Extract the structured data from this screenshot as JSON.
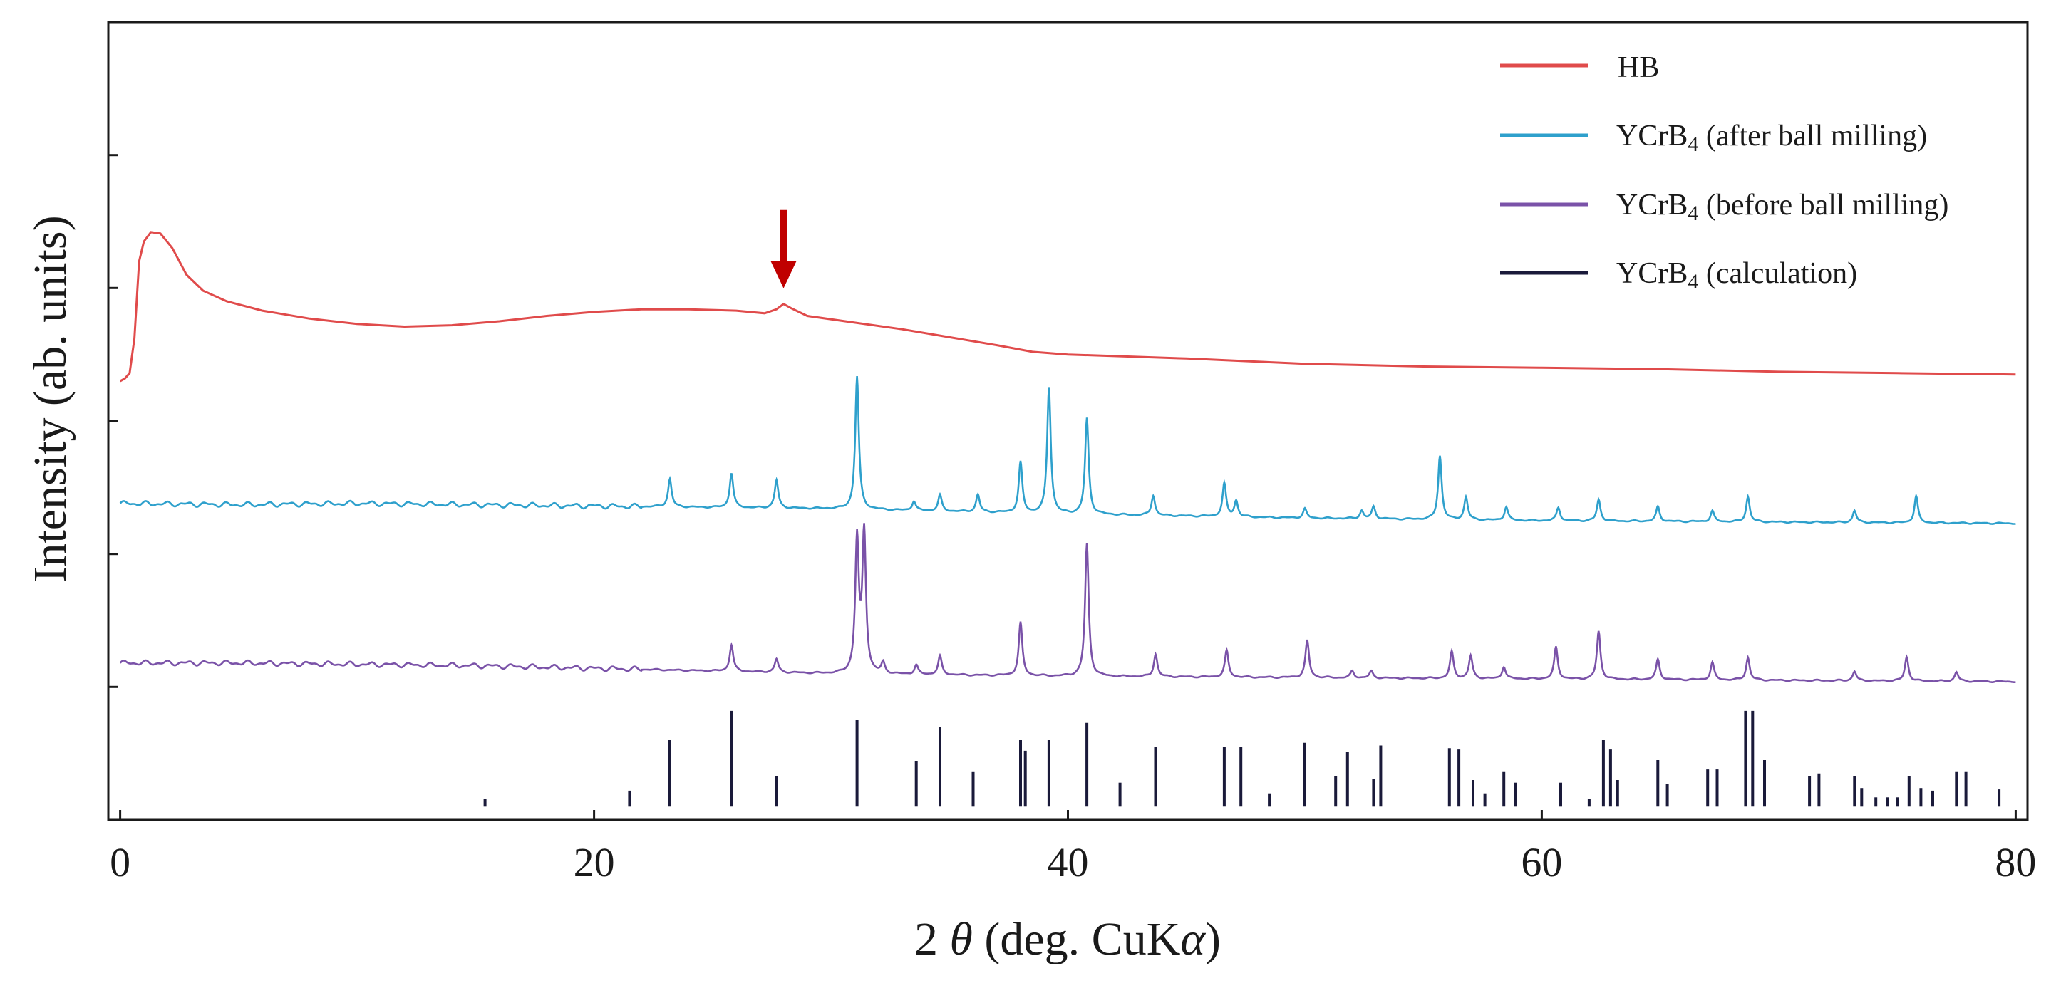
{
  "chart_data": {
    "type": "line",
    "title": "",
    "xlabel_parts": [
      "2 ",
      "θ",
      " (deg. CuK",
      "α",
      ")"
    ],
    "ylabel": "Intensity (ab. units)",
    "xlim": [
      -0.5,
      80.5
    ],
    "ylim": [
      0,
      6
    ],
    "x_ticks": [
      0,
      20,
      40,
      60,
      80
    ],
    "x_tick_labels": [
      "0",
      "20",
      "40",
      "60",
      "80"
    ],
    "y_ticks": [
      1,
      2,
      3,
      4,
      5,
      6
    ],
    "grid": false,
    "legend_position": "top-right",
    "colors": {
      "HB": "#e04b4b",
      "after": "#2ea0cc",
      "before": "#7a52a8",
      "calc": "#1a1a3a",
      "arrow": "#c00000"
    },
    "legend": [
      {
        "key": "HB",
        "label": "HB",
        "sub": "",
        "rest": ""
      },
      {
        "key": "after",
        "label": "YCrB",
        "sub": "4",
        "rest": " (after ball milling)"
      },
      {
        "key": "before",
        "label": "YCrB",
        "sub": "4",
        "rest": " (before ball milling)"
      },
      {
        "key": "calc",
        "label": "YCrB",
        "sub": "4",
        "rest": " (calculation)"
      }
    ],
    "annotation": {
      "type": "arrow",
      "x": 28.0,
      "note": "peak marker on HB pattern"
    },
    "series": [
      {
        "name": "HB",
        "key": "HB",
        "points": [
          [
            0,
            3.3
          ],
          [
            0.2,
            3.32
          ],
          [
            0.4,
            3.36
          ],
          [
            0.6,
            3.62
          ],
          [
            0.8,
            4.2
          ],
          [
            1.0,
            4.35
          ],
          [
            1.3,
            4.42
          ],
          [
            1.7,
            4.41
          ],
          [
            2.2,
            4.3
          ],
          [
            2.8,
            4.1
          ],
          [
            3.5,
            3.98
          ],
          [
            4.5,
            3.9
          ],
          [
            6,
            3.83
          ],
          [
            8,
            3.77
          ],
          [
            10,
            3.73
          ],
          [
            12,
            3.71
          ],
          [
            14,
            3.72
          ],
          [
            16,
            3.75
          ],
          [
            18,
            3.79
          ],
          [
            20,
            3.82
          ],
          [
            22,
            3.84
          ],
          [
            24,
            3.84
          ],
          [
            26,
            3.83
          ],
          [
            27.2,
            3.81
          ],
          [
            27.7,
            3.84
          ],
          [
            28.0,
            3.88
          ],
          [
            28.3,
            3.85
          ],
          [
            29,
            3.79
          ],
          [
            31,
            3.74
          ],
          [
            33,
            3.69
          ],
          [
            35,
            3.63
          ],
          [
            37,
            3.57
          ],
          [
            38.5,
            3.52
          ],
          [
            40,
            3.5
          ],
          [
            45,
            3.47
          ],
          [
            50,
            3.43
          ],
          [
            55,
            3.41
          ],
          [
            60,
            3.4
          ],
          [
            65,
            3.39
          ],
          [
            70,
            3.37
          ],
          [
            75,
            3.36
          ],
          [
            80,
            3.35
          ]
        ]
      },
      {
        "name": "YCrB4 (after ball milling)",
        "key": "after",
        "baseline": [
          [
            0,
            2.38
          ],
          [
            5,
            2.37
          ],
          [
            10,
            2.38
          ],
          [
            15,
            2.37
          ],
          [
            20,
            2.36
          ],
          [
            25,
            2.35
          ],
          [
            30,
            2.34
          ],
          [
            35,
            2.32
          ],
          [
            40,
            2.3
          ],
          [
            50,
            2.27
          ],
          [
            60,
            2.25
          ],
          [
            70,
            2.24
          ],
          [
            80,
            2.23
          ]
        ],
        "peaks": [
          [
            23.2,
            0.21
          ],
          [
            25.8,
            0.26
          ],
          [
            27.7,
            0.21
          ],
          [
            31.1,
            1.0
          ],
          [
            33.5,
            0.07
          ],
          [
            34.6,
            0.12
          ],
          [
            36.2,
            0.13
          ],
          [
            38.0,
            0.38
          ],
          [
            39.2,
            0.95
          ],
          [
            40.8,
            0.72
          ],
          [
            43.6,
            0.15
          ],
          [
            46.6,
            0.25
          ],
          [
            47.1,
            0.12
          ],
          [
            50,
            0.07
          ],
          [
            52.4,
            0.06
          ],
          [
            52.9,
            0.09
          ],
          [
            55.7,
            0.48
          ],
          [
            56.8,
            0.17
          ],
          [
            58.5,
            0.1
          ],
          [
            60.7,
            0.1
          ],
          [
            62.4,
            0.16
          ],
          [
            64.9,
            0.11
          ],
          [
            67.2,
            0.08
          ],
          [
            68.7,
            0.19
          ],
          [
            73.2,
            0.09
          ],
          [
            75.8,
            0.2
          ]
        ]
      },
      {
        "name": "YCrB4 (before ball milling)",
        "key": "before",
        "baseline": [
          [
            0,
            1.18
          ],
          [
            5,
            1.18
          ],
          [
            10,
            1.17
          ],
          [
            15,
            1.16
          ],
          [
            20,
            1.14
          ],
          [
            25,
            1.12
          ],
          [
            30,
            1.1
          ],
          [
            40,
            1.08
          ],
          [
            50,
            1.07
          ],
          [
            60,
            1.06
          ],
          [
            70,
            1.05
          ],
          [
            80,
            1.04
          ]
        ],
        "peaks": [
          [
            25.8,
            0.2
          ],
          [
            27.7,
            0.1
          ],
          [
            31.1,
            1.0
          ],
          [
            31.4,
            1.05
          ],
          [
            32.2,
            0.08
          ],
          [
            33.6,
            0.07
          ],
          [
            34.6,
            0.14
          ],
          [
            38.0,
            0.4
          ],
          [
            40.8,
            1.0
          ],
          [
            43.7,
            0.17
          ],
          [
            46.7,
            0.2
          ],
          [
            50.1,
            0.28
          ],
          [
            52,
            0.05
          ],
          [
            52.8,
            0.05
          ],
          [
            56.2,
            0.2
          ],
          [
            57,
            0.17
          ],
          [
            58.4,
            0.09
          ],
          [
            60.6,
            0.24
          ],
          [
            62.4,
            0.36
          ],
          [
            64.9,
            0.15
          ],
          [
            67.2,
            0.13
          ],
          [
            68.7,
            0.17
          ],
          [
            73.2,
            0.07
          ],
          [
            75.4,
            0.18
          ],
          [
            77.5,
            0.07
          ]
        ]
      },
      {
        "name": "YCrB4 (calculation)",
        "key": "calc",
        "baseline_y": 0.1,
        "sticks": [
          [
            15.4,
            0.06
          ],
          [
            21.5,
            0.12
          ],
          [
            23.2,
            0.5
          ],
          [
            25.8,
            0.72
          ],
          [
            27.7,
            0.23
          ],
          [
            31.1,
            0.65
          ],
          [
            33.6,
            0.34
          ],
          [
            34.6,
            0.6
          ],
          [
            36.0,
            0.26
          ],
          [
            38.0,
            0.5
          ],
          [
            38.2,
            0.42
          ],
          [
            39.2,
            0.5
          ],
          [
            40.8,
            0.63
          ],
          [
            42.2,
            0.18
          ],
          [
            43.7,
            0.45
          ],
          [
            46.6,
            0.45
          ],
          [
            47.3,
            0.45
          ],
          [
            48.5,
            0.1
          ],
          [
            50.0,
            0.48
          ],
          [
            51.3,
            0.23
          ],
          [
            51.8,
            0.41
          ],
          [
            52.9,
            0.21
          ],
          [
            53.2,
            0.46
          ],
          [
            56.1,
            0.44
          ],
          [
            56.5,
            0.43
          ],
          [
            57.1,
            0.2
          ],
          [
            57.6,
            0.1
          ],
          [
            58.4,
            0.26
          ],
          [
            58.9,
            0.18
          ],
          [
            60.8,
            0.18
          ],
          [
            62.0,
            0.06
          ],
          [
            62.6,
            0.5
          ],
          [
            62.9,
            0.43
          ],
          [
            63.2,
            0.2
          ],
          [
            64.9,
            0.35
          ],
          [
            65.3,
            0.17
          ],
          [
            67.0,
            0.28
          ],
          [
            67.4,
            0.28
          ],
          [
            68.6,
            0.72
          ],
          [
            68.9,
            0.72
          ],
          [
            69.4,
            0.35
          ],
          [
            71.3,
            0.23
          ],
          [
            71.7,
            0.25
          ],
          [
            73.2,
            0.23
          ],
          [
            73.5,
            0.14
          ],
          [
            74.1,
            0.07
          ],
          [
            74.6,
            0.07
          ],
          [
            75.0,
            0.07
          ],
          [
            75.5,
            0.23
          ],
          [
            76.0,
            0.14
          ],
          [
            76.5,
            0.12
          ],
          [
            77.5,
            0.26
          ],
          [
            77.9,
            0.26
          ],
          [
            79.3,
            0.13
          ]
        ]
      }
    ]
  }
}
